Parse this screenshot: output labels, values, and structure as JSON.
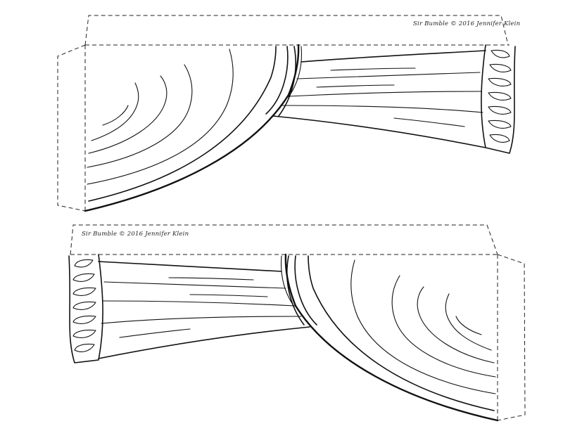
{
  "credits": {
    "top": "Sir Bumble © 2016 Jennifer Klein",
    "bottom": "Sir Bumble © 2016 Jennifer Klein"
  },
  "colors": {
    "ink": "#111111",
    "paper": "#ffffff"
  }
}
